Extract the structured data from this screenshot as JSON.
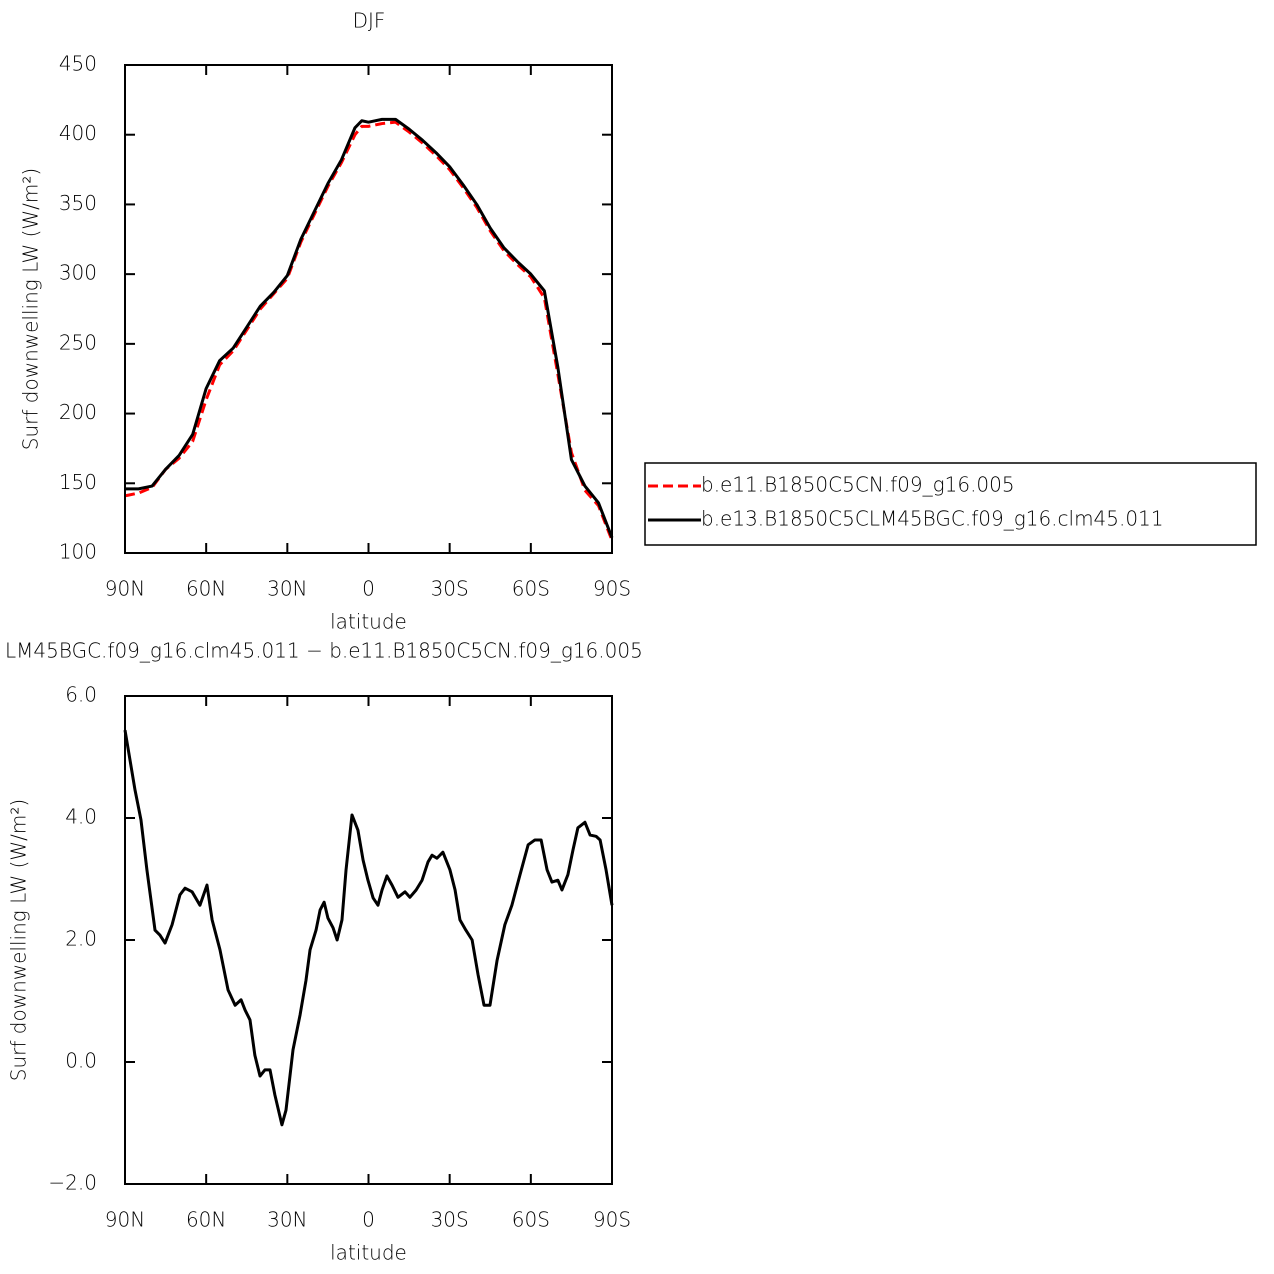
{
  "chart_data": [
    {
      "type": "line",
      "title": "DJF",
      "xlabel": "latitude",
      "ylabel": "Surf downwelling LW (W/m²)",
      "xlim": [
        90,
        -90
      ],
      "ylim": [
        100,
        450
      ],
      "xticks": [
        {
          "value": 90,
          "label": "90N"
        },
        {
          "value": 60,
          "label": "60N"
        },
        {
          "value": 30,
          "label": "30N"
        },
        0,
        {
          "value": -30,
          "label": "30S"
        },
        {
          "value": -60,
          "label": "60S"
        },
        {
          "value": -90,
          "label": "90S"
        }
      ],
      "yticks": [
        100,
        150,
        200,
        250,
        300,
        350,
        400,
        450
      ],
      "legend": "right",
      "x": [
        90,
        85,
        80,
        75,
        70,
        65,
        60,
        55,
        50,
        45,
        40,
        35,
        30,
        25,
        20,
        15,
        10,
        5,
        2.5,
        0,
        -5,
        -10,
        -15,
        -20,
        -25,
        -30,
        -35,
        -40,
        -45,
        -50,
        -55,
        -60,
        -65,
        -70,
        -75,
        -80,
        -85,
        -90
      ],
      "series": [
        {
          "name": "b.e11.B1850C5CN.f09_g16.005",
          "color": "#ff0000",
          "style": "dashed",
          "values": [
            141,
            143,
            147,
            160,
            168,
            180,
            210,
            235,
            245,
            260,
            275,
            286,
            297,
            323,
            343,
            363,
            380,
            400,
            406,
            406,
            408,
            409,
            402,
            394,
            385,
            375,
            362,
            348,
            331,
            317,
            307,
            298,
            283,
            228,
            172,
            145,
            134,
            109
          ]
        },
        {
          "name": "b.e13.B1850C5CLM45BGC.f09_g16.clm45.011",
          "color": "#000000",
          "style": "solid",
          "values": [
            146,
            146,
            148,
            160,
            170,
            185,
            218,
            238,
            247,
            262,
            277,
            287,
            299,
            325,
            345,
            365,
            382,
            405,
            410,
            409,
            411,
            411,
            404,
            396,
            387,
            377,
            364,
            350,
            333,
            319,
            309,
            300,
            288,
            233,
            167,
            148,
            136,
            111
          ]
        }
      ]
    },
    {
      "type": "line",
      "title": "LM45BGC.f09_g16.clm45.011 − b.e11.B1850C5CN.f09_g16.005",
      "xlabel": "latitude",
      "ylabel": "Surf downwelling LW (W/m²)",
      "xlim": [
        90,
        -90
      ],
      "ylim": [
        -2,
        6
      ],
      "xticks": [
        {
          "value": 90,
          "label": "90N"
        },
        {
          "value": 60,
          "label": "60N"
        },
        {
          "value": 30,
          "label": "30N"
        },
        0,
        {
          "value": -30,
          "label": "30S"
        },
        {
          "value": -60,
          "label": "60S"
        },
        {
          "value": -90,
          "label": "90S"
        }
      ],
      "yticks": [
        {
          "value": 6,
          "label": "6.0"
        },
        {
          "value": 4,
          "label": "4.0"
        },
        {
          "value": 2,
          "label": "2.0"
        },
        {
          "value": 0,
          "label": "0.0"
        },
        {
          "value": -2,
          "label": "−2.0"
        }
      ],
      "x": [
        90,
        86.3,
        84.1,
        81.9,
        78.9,
        77.1,
        75.2,
        72.6,
        69.7,
        67.8,
        65.2,
        62.3,
        59.7,
        57.8,
        54.9,
        51.9,
        49.3,
        47.1,
        45.6,
        43.8,
        42.0,
        40.1,
        38.3,
        36.4,
        34.6,
        32.0,
        30.5,
        27.9,
        25.3,
        23.1,
        21.6,
        19.4,
        17.9,
        16.4,
        15.0,
        13.1,
        11.6,
        9.8,
        8.3,
        6.1,
        3.9,
        2.0,
        0.2,
        -1.7,
        -3.5,
        -5.0,
        -6.8,
        -8.7,
        -10.9,
        -13.5,
        -15.3,
        -17.6,
        -19.8,
        -22.0,
        -23.5,
        -25.3,
        -27.5,
        -30.1,
        -32.0,
        -33.8,
        -36.0,
        -38.3,
        -40.5,
        -42.7,
        -44.9,
        -47.5,
        -50.4,
        -53.0,
        -56.0,
        -59.0,
        -61.5,
        -63.8,
        -66.0,
        -67.8,
        -70.0,
        -71.5,
        -73.7,
        -75.6,
        -77.4,
        -80.0,
        -81.9,
        -84.1,
        -85.6,
        -87.8,
        -90
      ],
      "series": [
        {
          "color": "#000000",
          "style": "solid",
          "values": [
            5.44,
            4.46,
            3.97,
            3.15,
            2.16,
            2.08,
            1.95,
            2.25,
            2.74,
            2.85,
            2.79,
            2.57,
            2.9,
            2.33,
            1.84,
            1.18,
            0.93,
            1.02,
            0.85,
            0.69,
            0.11,
            -0.23,
            -0.13,
            -0.13,
            -0.54,
            -1.03,
            -0.79,
            0.2,
            0.77,
            1.34,
            1.84,
            2.16,
            2.49,
            2.62,
            2.36,
            2.2,
            2.0,
            2.33,
            3.15,
            4.05,
            3.8,
            3.31,
            2.98,
            2.69,
            2.57,
            2.82,
            3.05,
            2.9,
            2.7,
            2.79,
            2.7,
            2.82,
            2.98,
            3.28,
            3.39,
            3.34,
            3.44,
            3.15,
            2.82,
            2.33,
            2.16,
            2.0,
            1.43,
            0.93,
            0.93,
            1.66,
            2.25,
            2.57,
            3.07,
            3.56,
            3.64,
            3.64,
            3.15,
            2.95,
            2.98,
            2.82,
            3.07,
            3.48,
            3.84,
            3.93,
            3.72,
            3.7,
            3.64,
            3.15,
            2.57
          ]
        }
      ]
    }
  ]
}
